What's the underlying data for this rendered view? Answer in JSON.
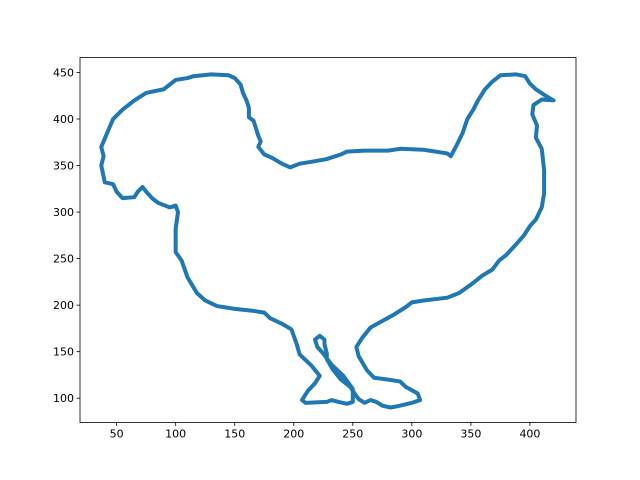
{
  "chart_data": {
    "type": "line",
    "color": "#1f77b4",
    "grid": false,
    "x": [
      115,
      130,
      145,
      150,
      155,
      157,
      160,
      162,
      162,
      166,
      168,
      170,
      172,
      170,
      175,
      182,
      190,
      197,
      205,
      215,
      228,
      240,
      245,
      260,
      280,
      290,
      310,
      330,
      333,
      338,
      343,
      347,
      352,
      356,
      362,
      368,
      375,
      388,
      396,
      400,
      405,
      412,
      420,
      410,
      403,
      402,
      406,
      405,
      410,
      412,
      412,
      410,
      405,
      400,
      395,
      388,
      380,
      374,
      368,
      360,
      350,
      340,
      330,
      310,
      300,
      295,
      285,
      275,
      265,
      258,
      253,
      255,
      262,
      268,
      280,
      290,
      295,
      305,
      307,
      300,
      290,
      282,
      275,
      270,
      265,
      260,
      255,
      252,
      248,
      240,
      233,
      228,
      228,
      226,
      226,
      222,
      218,
      220,
      225,
      232,
      242,
      250,
      250,
      245,
      238,
      232,
      228,
      210,
      207,
      212,
      218,
      222,
      215,
      205,
      202,
      198,
      190,
      180,
      175,
      165,
      150,
      135,
      125,
      118,
      110,
      105,
      100,
      100,
      102,
      100,
      95,
      85,
      80,
      75,
      72,
      68,
      65,
      55,
      50,
      47,
      40,
      37,
      39,
      37,
      42,
      47,
      55,
      65,
      75,
      90,
      100,
      110,
      115
    ],
    "y": [
      446,
      448,
      447,
      444,
      437,
      428,
      420,
      412,
      402,
      398,
      390,
      382,
      376,
      370,
      362,
      358,
      352,
      348,
      352,
      354,
      357,
      362,
      365,
      366,
      366,
      368,
      367,
      363,
      360,
      372,
      385,
      400,
      410,
      420,
      432,
      440,
      447,
      448,
      446,
      438,
      432,
      426,
      420,
      421,
      415,
      405,
      393,
      380,
      368,
      345,
      320,
      305,
      292,
      285,
      275,
      265,
      254,
      248,
      238,
      232,
      222,
      213,
      208,
      205,
      203,
      198,
      190,
      183,
      176,
      165,
      155,
      145,
      130,
      122,
      120,
      118,
      112,
      105,
      98,
      95,
      92,
      90,
      92,
      96,
      98,
      95,
      99,
      104,
      112,
      120,
      131,
      142,
      148,
      158,
      163,
      167,
      163,
      155,
      148,
      136,
      124,
      110,
      96,
      94,
      96,
      98,
      96,
      95,
      98,
      108,
      116,
      124,
      135,
      147,
      160,
      174,
      180,
      186,
      192,
      194,
      196,
      199,
      205,
      213,
      230,
      248,
      257,
      282,
      300,
      307,
      305,
      310,
      315,
      322,
      327,
      322,
      316,
      315,
      322,
      330,
      332,
      350,
      360,
      370,
      385,
      400,
      410,
      420,
      428,
      432,
      442,
      444,
      446
    ],
    "xlim": [
      19,
      439
    ],
    "ylim": [
      74,
      466
    ],
    "xticks": [
      50,
      100,
      150,
      200,
      250,
      300,
      350,
      400
    ],
    "yticks": [
      100,
      150,
      200,
      250,
      300,
      350,
      400,
      450
    ]
  }
}
